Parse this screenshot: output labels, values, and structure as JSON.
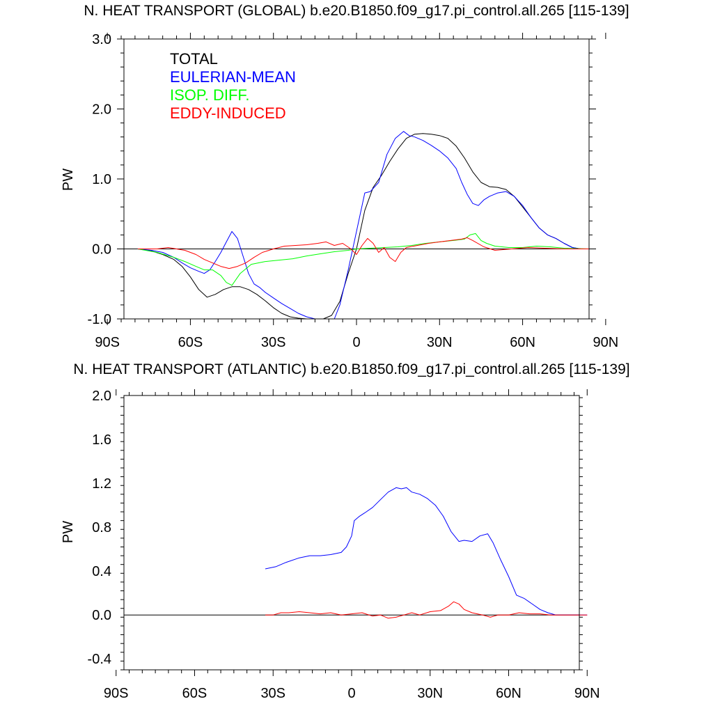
{
  "chart_data": [
    {
      "type": "line",
      "title": "N. HEAT TRANSPORT (GLOBAL) b.e20.B1850.f09_g17.pi_control.all.265 [115-139]",
      "xlabel": "",
      "ylabel": "PW",
      "xlim": [
        -90,
        90
      ],
      "ylim": [
        -1.0,
        3.0
      ],
      "xticks": [
        -90,
        -60,
        -30,
        0,
        30,
        60,
        90
      ],
      "xtick_labels": [
        "90S",
        "60S",
        "30S",
        "0",
        "30N",
        "60N",
        "90N"
      ],
      "yticks": [
        -1.0,
        0.0,
        1.0,
        2.0,
        3.0
      ],
      "ytick_labels": [
        "-1.0",
        "0.0",
        "1.0",
        "2.0",
        "3.0"
      ],
      "legend_position": "top-left",
      "series": [
        {
          "name": "TOTAL",
          "color": "#000000",
          "x": [
            -79,
            -74,
            -70,
            -66,
            -63,
            -60,
            -57,
            -54,
            -51,
            -48,
            -45,
            -42,
            -39,
            -36,
            -33,
            -30,
            -27,
            -24,
            -21,
            -18,
            -15,
            -12,
            -9,
            -6,
            -3,
            0,
            3,
            6,
            9,
            12,
            15,
            18,
            21,
            24,
            27,
            30,
            33,
            36,
            39,
            42,
            45,
            48,
            51,
            54,
            57,
            60,
            63,
            66,
            69,
            72,
            75,
            78,
            81,
            84
          ],
          "y": [
            0.0,
            -0.03,
            -0.08,
            -0.15,
            -0.25,
            -0.4,
            -0.58,
            -0.69,
            -0.65,
            -0.58,
            -0.54,
            -0.54,
            -0.58,
            -0.65,
            -0.74,
            -0.84,
            -0.92,
            -0.97,
            -0.99,
            -1.0,
            -1.0,
            -1.0,
            -0.95,
            -0.75,
            -0.35,
            0.0,
            0.55,
            0.88,
            1.05,
            1.25,
            1.43,
            1.58,
            1.64,
            1.65,
            1.64,
            1.62,
            1.58,
            1.47,
            1.3,
            1.1,
            0.95,
            0.89,
            0.88,
            0.85,
            0.75,
            0.6,
            0.45,
            0.3,
            0.2,
            0.15,
            0.08,
            0.02,
            0.0,
            0.0
          ]
        },
        {
          "name": "EULERIAN-MEAN",
          "color": "#0000ff",
          "x": [
            -79,
            -74,
            -70,
            -66,
            -63,
            -60,
            -57,
            -55,
            -53,
            -51,
            -49,
            -47,
            -45,
            -43,
            -41,
            -39,
            -37,
            -35,
            -33,
            -30,
            -27,
            -24,
            -21,
            -18,
            -15,
            -12,
            -10,
            -8,
            -6,
            -3,
            0,
            3,
            5,
            8,
            11,
            14,
            17,
            19,
            21,
            24,
            27,
            30,
            33,
            36,
            38,
            40,
            42,
            44,
            46,
            48,
            51,
            54,
            57,
            60,
            63,
            66,
            69,
            72,
            75,
            78,
            81,
            84
          ],
          "y": [
            0.0,
            -0.02,
            -0.05,
            -0.12,
            -0.2,
            -0.27,
            -0.32,
            -0.35,
            -0.3,
            -0.18,
            -0.05,
            0.1,
            0.25,
            0.15,
            -0.1,
            -0.35,
            -0.5,
            -0.55,
            -0.62,
            -0.7,
            -0.78,
            -0.85,
            -0.92,
            -0.97,
            -1.0,
            -1.0,
            -1.0,
            -1.0,
            -0.8,
            -0.3,
            0.25,
            0.8,
            0.82,
            0.95,
            1.35,
            1.58,
            1.68,
            1.62,
            1.6,
            1.55,
            1.48,
            1.4,
            1.3,
            1.15,
            0.95,
            0.78,
            0.65,
            0.62,
            0.7,
            0.75,
            0.8,
            0.82,
            0.75,
            0.62,
            0.45,
            0.3,
            0.2,
            0.15,
            0.08,
            0.02,
            0.0,
            0.0
          ]
        },
        {
          "name": "ISOP. DIFF.",
          "color": "#00ff00",
          "x": [
            -79,
            -72,
            -66,
            -62,
            -58,
            -55,
            -52,
            -49,
            -47,
            -45,
            -42,
            -38,
            -33,
            -28,
            -23,
            -18,
            -13,
            -8,
            -3,
            0,
            5,
            10,
            15,
            20,
            25,
            30,
            35,
            39,
            41,
            43,
            45,
            47,
            50,
            55,
            60,
            65,
            70,
            75,
            84
          ],
          "y": [
            0.0,
            -0.05,
            -0.12,
            -0.18,
            -0.25,
            -0.3,
            -0.3,
            -0.38,
            -0.48,
            -0.52,
            -0.35,
            -0.22,
            -0.18,
            -0.16,
            -0.14,
            -0.1,
            -0.07,
            -0.04,
            -0.02,
            0.0,
            0.01,
            0.02,
            0.03,
            0.05,
            0.08,
            0.1,
            0.12,
            0.14,
            0.2,
            0.22,
            0.12,
            0.08,
            0.04,
            0.02,
            0.02,
            0.04,
            0.03,
            0.01,
            0.0
          ]
        },
        {
          "name": "EDDY-INDUCED",
          "color": "#ff0000",
          "x": [
            -79,
            -72,
            -68,
            -65,
            -62,
            -58,
            -55,
            -52,
            -49,
            -46,
            -43,
            -40,
            -37,
            -34,
            -30,
            -26,
            -22,
            -18,
            -14,
            -11,
            -8,
            -5,
            -2,
            0,
            2,
            4,
            6,
            8,
            10,
            12,
            14,
            16,
            18,
            22,
            26,
            30,
            34,
            38,
            40,
            42,
            46,
            50,
            56,
            62,
            68,
            75,
            84
          ],
          "y": [
            0.0,
            0.0,
            0.02,
            0.0,
            -0.02,
            -0.08,
            -0.15,
            -0.2,
            -0.25,
            -0.28,
            -0.25,
            -0.2,
            -0.12,
            -0.05,
            0.0,
            0.04,
            0.05,
            0.06,
            0.08,
            0.1,
            0.05,
            0.08,
            0.0,
            -0.08,
            0.05,
            0.15,
            0.08,
            -0.05,
            0.02,
            -0.12,
            -0.18,
            -0.05,
            0.02,
            0.05,
            0.08,
            0.1,
            0.12,
            0.14,
            0.16,
            0.12,
            0.03,
            -0.02,
            0.0,
            0.02,
            0.01,
            0.0,
            0.0
          ]
        }
      ]
    },
    {
      "type": "line",
      "title": "N. HEAT TRANSPORT (ATLANTIC) b.e20.B1850.f09_g17.pi_control.all.265 [115-139]",
      "xlabel": "",
      "ylabel": "PW",
      "xlim": [
        -90,
        90
      ],
      "ylim": [
        -0.5,
        2.0
      ],
      "xticks": [
        -90,
        -60,
        -30,
        0,
        30,
        60,
        90
      ],
      "xtick_labels": [
        "90S",
        "60S",
        "30S",
        "0",
        "30N",
        "60N",
        "90N"
      ],
      "yticks": [
        -0.4,
        0.0,
        0.4,
        0.8,
        1.2,
        1.6,
        2.0
      ],
      "ytick_labels": [
        "-0.4",
        "0.0",
        "0.4",
        "0.8",
        "1.2",
        "1.6",
        "2.0"
      ],
      "series": [
        {
          "name": "EULERIAN-MEAN",
          "color": "#0000ff",
          "x": [
            -33,
            -29,
            -25,
            -20,
            -16,
            -12,
            -8,
            -4,
            -2,
            0,
            1,
            3,
            5,
            8,
            11,
            14,
            17,
            19,
            21,
            23,
            26,
            29,
            32,
            35,
            38,
            41,
            43,
            46,
            49,
            52,
            54,
            57,
            60,
            63,
            66,
            69,
            72,
            75,
            78,
            81,
            84,
            90
          ],
          "y": [
            0.42,
            0.44,
            0.48,
            0.52,
            0.54,
            0.54,
            0.55,
            0.57,
            0.62,
            0.72,
            0.86,
            0.9,
            0.93,
            0.98,
            1.05,
            1.12,
            1.16,
            1.15,
            1.16,
            1.12,
            1.1,
            1.06,
            1.0,
            0.9,
            0.76,
            0.67,
            0.68,
            0.67,
            0.72,
            0.74,
            0.66,
            0.5,
            0.35,
            0.18,
            0.15,
            0.1,
            0.05,
            0.02,
            0.0,
            0.0,
            0.0,
            0.0
          ]
        },
        {
          "name": "EDDY-INDUCED",
          "color": "#ff0000",
          "x": [
            -33,
            -30,
            -27,
            -24,
            -20,
            -16,
            -12,
            -8,
            -4,
            0,
            4,
            8,
            11,
            14,
            17,
            20,
            23,
            26,
            30,
            34,
            37,
            39,
            41,
            43,
            46,
            50,
            53,
            56,
            60,
            64,
            68,
            72,
            76,
            80,
            84,
            90
          ],
          "y": [
            0.0,
            0.0,
            0.02,
            0.02,
            0.03,
            0.02,
            0.01,
            0.02,
            0.0,
            0.01,
            0.02,
            -0.01,
            0.0,
            -0.03,
            -0.02,
            0.0,
            0.02,
            0.0,
            0.03,
            0.04,
            0.08,
            0.12,
            0.1,
            0.05,
            0.02,
            0.0,
            -0.02,
            0.0,
            0.0,
            0.02,
            0.01,
            0.01,
            0.0,
            0.0,
            0.0,
            0.0
          ]
        }
      ]
    }
  ]
}
